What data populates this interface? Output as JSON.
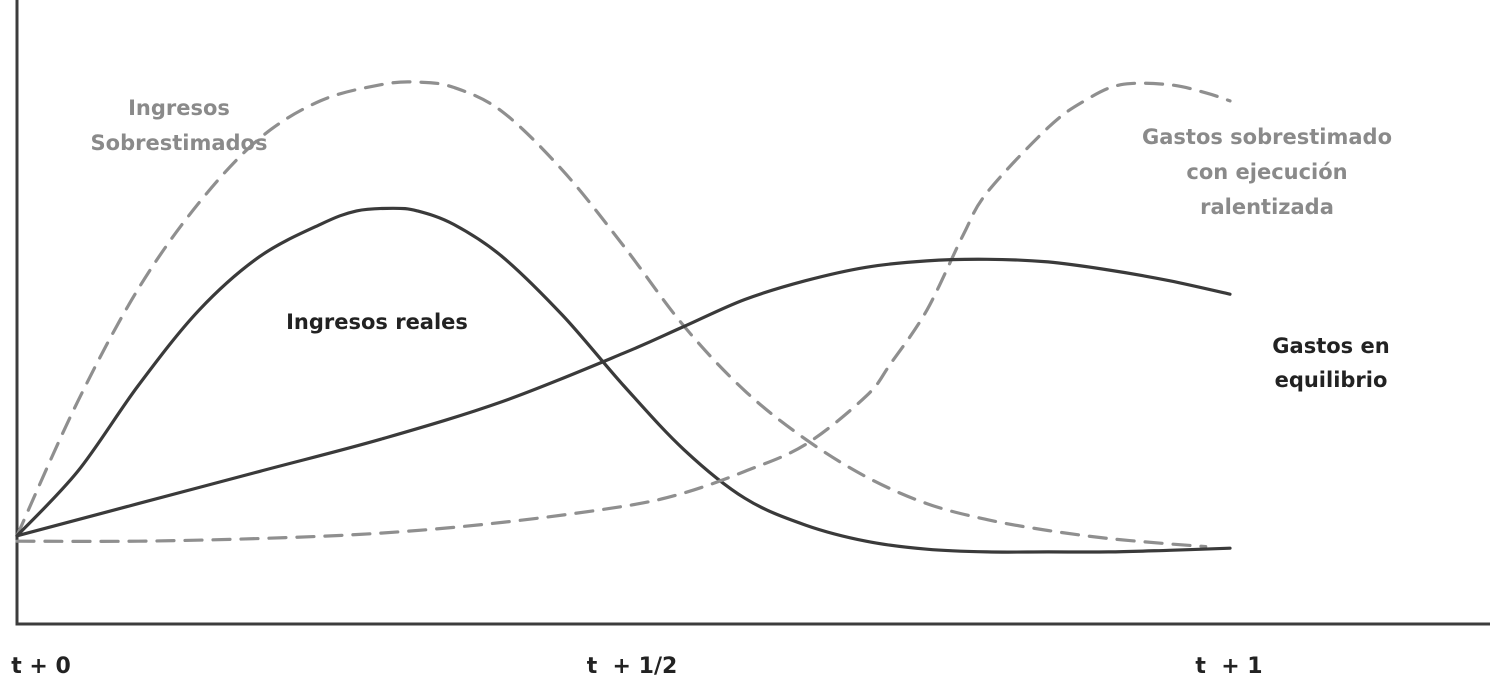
{
  "chart_data": {
    "type": "line",
    "title": "",
    "xlabel": "",
    "ylabel": "",
    "grid": false,
    "x_ticks": [
      {
        "x": 0,
        "label": "t + 0"
      },
      {
        "x": 0.5,
        "label": "t  + 1/2"
      },
      {
        "x": 1,
        "label": "t  + 1"
      }
    ],
    "xlim": [
      0,
      1.22
    ],
    "ylim": [
      0,
      1
    ],
    "series": [
      {
        "name_lines": [
          "Ingresos",
          "Sobrestimados"
        ],
        "style": "dashed",
        "color": "#8f8f8f",
        "x": [
          0,
          0.05,
          0.1,
          0.15,
          0.2,
          0.25,
          0.3,
          0.33,
          0.36,
          0.4,
          0.45,
          0.5,
          0.55,
          0.6,
          0.65,
          0.7,
          0.75,
          0.8,
          0.85,
          0.9,
          0.95,
          0.98
        ],
        "y": [
          0.14,
          0.39,
          0.6,
          0.76,
          0.88,
          0.95,
          0.98,
          0.985,
          0.975,
          0.93,
          0.82,
          0.68,
          0.53,
          0.41,
          0.32,
          0.25,
          0.2,
          0.17,
          0.15,
          0.135,
          0.125,
          0.12
        ]
      },
      {
        "name_lines": [
          "Ingresos reales"
        ],
        "style": "solid",
        "color": "#3a3a3a",
        "x": [
          0,
          0.05,
          0.1,
          0.15,
          0.2,
          0.25,
          0.28,
          0.31,
          0.33,
          0.36,
          0.4,
          0.45,
          0.5,
          0.55,
          0.6,
          0.65,
          0.7,
          0.75,
          0.8,
          0.85,
          0.9,
          0.95,
          1.0
        ],
        "y": [
          0.14,
          0.26,
          0.42,
          0.56,
          0.66,
          0.72,
          0.745,
          0.75,
          0.745,
          0.72,
          0.66,
          0.55,
          0.42,
          0.3,
          0.21,
          0.16,
          0.13,
          0.115,
          0.11,
          0.11,
          0.11,
          0.113,
          0.117
        ]
      },
      {
        "name_lines": [
          "Gastos sobrestimado",
          "con ejecución",
          "ralentizada"
        ],
        "style": "dashed",
        "color": "#8f8f8f",
        "x": [
          0,
          0.1,
          0.2,
          0.3,
          0.4,
          0.5,
          0.55,
          0.6,
          0.65,
          0.7,
          0.72,
          0.75,
          0.78,
          0.8,
          0.85,
          0.88,
          0.91,
          0.95,
          0.98,
          1.0
        ],
        "y": [
          0.13,
          0.13,
          0.135,
          0.145,
          0.165,
          0.195,
          0.22,
          0.26,
          0.31,
          0.4,
          0.46,
          0.56,
          0.7,
          0.78,
          0.9,
          0.95,
          0.98,
          0.98,
          0.965,
          0.95
        ]
      },
      {
        "name_lines": [
          "Gastos en",
          "equilibrio"
        ],
        "style": "solid",
        "color": "#3a3a3a",
        "x": [
          0,
          0.1,
          0.2,
          0.3,
          0.4,
          0.5,
          0.55,
          0.6,
          0.65,
          0.7,
          0.75,
          0.8,
          0.85,
          0.9,
          0.95,
          1.0
        ],
        "y": [
          0.14,
          0.2,
          0.26,
          0.32,
          0.39,
          0.48,
          0.53,
          0.58,
          0.615,
          0.64,
          0.652,
          0.655,
          0.65,
          0.635,
          0.615,
          0.59
        ]
      }
    ]
  }
}
